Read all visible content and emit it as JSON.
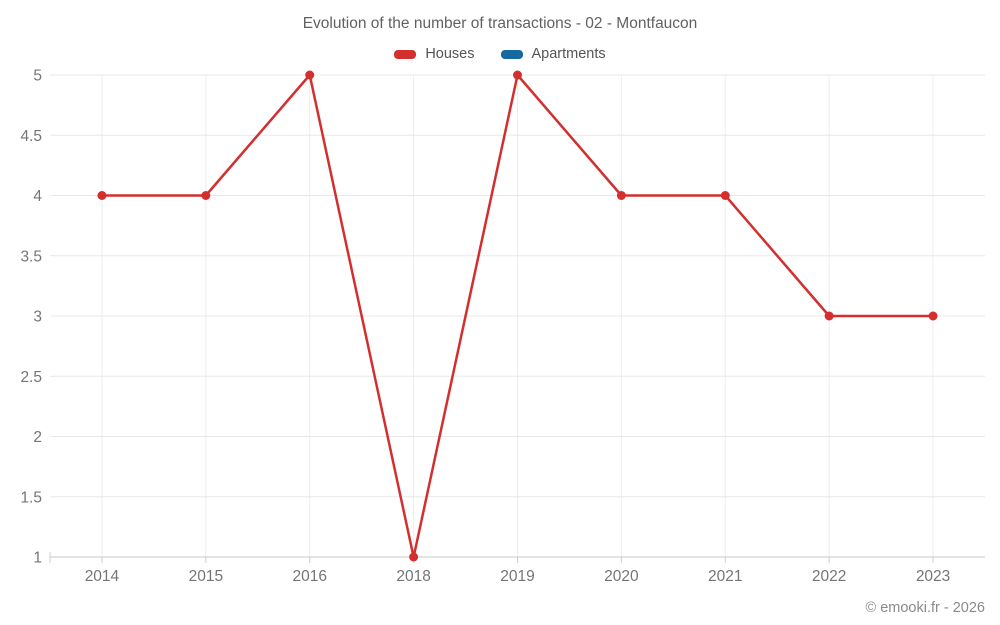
{
  "chart_data": {
    "type": "line",
    "title": "Evolution of the number of transactions - 02 - Montfaucon",
    "categories": [
      "2014",
      "2015",
      "2016",
      "2018",
      "2019",
      "2020",
      "2021",
      "2022",
      "2023"
    ],
    "series": [
      {
        "name": "Houses",
        "color": "#d32f2f",
        "values": [
          4,
          4,
          5,
          1,
          5,
          4,
          4,
          3,
          3
        ]
      },
      {
        "name": "Apartments",
        "color": "#15699f",
        "values": []
      }
    ],
    "xlabel": "",
    "ylabel": "",
    "ylim": [
      1,
      5
    ],
    "ytick_step": 0.5,
    "yticks": [
      "1",
      "1.5",
      "2",
      "2.5",
      "3",
      "3.5",
      "4",
      "4.5",
      "5"
    ],
    "grid": "on",
    "legend_position": "top-center"
  },
  "footer": {
    "credit": "© emooki.fr - 2026"
  },
  "colors": {
    "grid_horizontal": "#e8e8e8",
    "grid_vertical": "#ededed",
    "axis_line": "#c9c9c9",
    "tick": "#cfcfcf",
    "axis_text": "#757575",
    "title_text": "#616161"
  }
}
